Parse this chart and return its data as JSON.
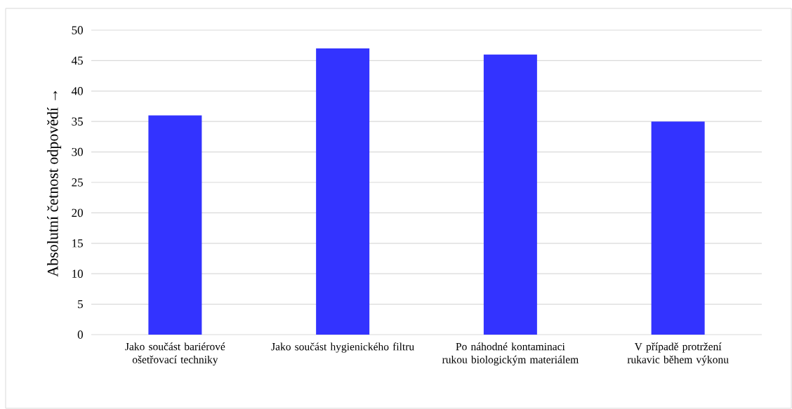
{
  "chart_data": {
    "type": "bar",
    "ylabel": "Absolutní četnost odpovědí  →",
    "categories": [
      "Jako součást bariérové ošetřovací techniky",
      "Jako součást hygienického filtru",
      "Po náhodné kontaminaci rukou biologickým materiálem",
      "V případě protržení rukavic během výkonu"
    ],
    "values": [
      36,
      47,
      46,
      35
    ],
    "color": "#3333ff",
    "ylim": [
      0,
      50
    ],
    "yticks": [
      0,
      5,
      10,
      15,
      20,
      25,
      30,
      35,
      40,
      45,
      50
    ],
    "grid": "y"
  }
}
